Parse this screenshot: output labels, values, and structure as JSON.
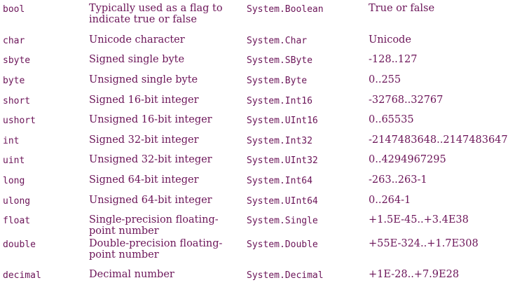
{
  "rows": [
    {
      "keyword": "bool",
      "description": "Typically used as a flag to indicate true or false",
      "system_type": "System.Boolean",
      "range": "True or false"
    },
    {
      "keyword": "char",
      "description": "Unicode character",
      "system_type": "System.Char",
      "range": "Unicode"
    },
    {
      "keyword": "sbyte",
      "description": "Signed single byte",
      "system_type": "System.SByte",
      "range": "-128..127"
    },
    {
      "keyword": "byte",
      "description": "Unsigned single byte",
      "system_type": "System.Byte",
      "range": "0..255"
    },
    {
      "keyword": "short",
      "description": "Signed 16-bit integer",
      "system_type": "System.Int16",
      "range": "-32768..32767"
    },
    {
      "keyword": "ushort",
      "description": "Unsigned 16-bit integer",
      "system_type": "System.UInt16",
      "range": "0..65535"
    },
    {
      "keyword": "int",
      "description": "Signed 32-bit integer",
      "system_type": "System.Int32",
      "range": "-2147483648..2147483647"
    },
    {
      "keyword": "uint",
      "description": "Unsigned 32-bit integer",
      "system_type": "System.UInt32",
      "range": "0..4294967295"
    },
    {
      "keyword": "long",
      "description": "Signed 64-bit integer",
      "system_type": "System.Int64",
      "range": "-263..263-1"
    },
    {
      "keyword": "ulong",
      "description": "Unsigned 64-bit integer",
      "system_type": "System.UInt64",
      "range": "0..264-1"
    },
    {
      "keyword": "float",
      "description": "Single-precision floating-point number",
      "system_type": "System.Single",
      "range": "+1.5E-45..+3.4E38"
    },
    {
      "keyword": "double",
      "description": "Double-precision floating-point number",
      "system_type": "System.Double",
      "range": "+55E-324..+1.7E308"
    },
    {
      "keyword": "decimal",
      "description": "Decimal number",
      "system_type": "System.Decimal",
      "range": "+1E-28..+7.9E28"
    }
  ],
  "colors": {
    "text": "#6b1458",
    "background": "#ffffff"
  }
}
